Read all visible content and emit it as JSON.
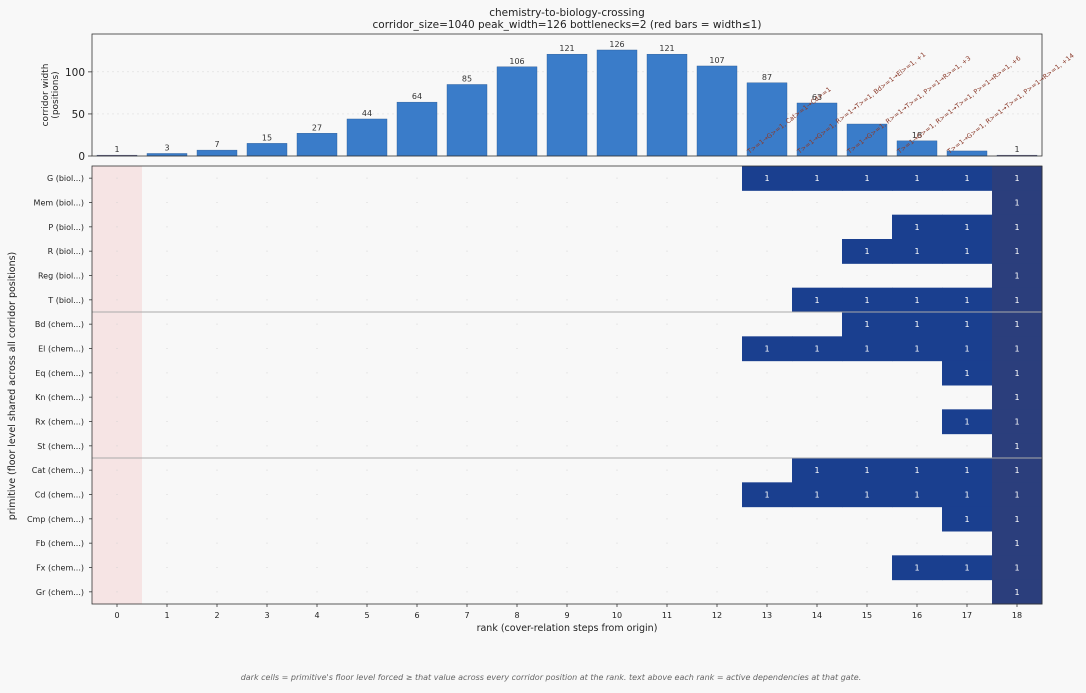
{
  "title": "chemistry-to-biology-crossing",
  "subtitle": "corridor_size=1040  peak_width=126  bottlenecks=2  (red bars = width≤1)",
  "footnote": "dark cells = primitive's floor level forced ≥ that value across every corridor position at the rank.  text above each rank = active dependencies at that gate.",
  "colors": {
    "bar": "#3a7cc9",
    "bar_bottleneck": "#c0392b",
    "bottleneck_band": "#f6e4e4",
    "cell": "#1a3f8f",
    "cell_last": "#2b3e7c",
    "annotation": "#8b3a2a"
  },
  "chart_data": [
    {
      "type": "bar",
      "ylabel": "corridor width\n(positions)",
      "ylim": [
        0,
        145
      ],
      "yticks": [
        0,
        50,
        100
      ],
      "categories": [
        0,
        1,
        2,
        3,
        4,
        5,
        6,
        7,
        8,
        9,
        10,
        11,
        12,
        13,
        14,
        15,
        16,
        17,
        18
      ],
      "values": [
        1,
        3,
        7,
        15,
        27,
        44,
        64,
        85,
        106,
        121,
        126,
        121,
        107,
        87,
        63,
        38,
        18,
        6,
        1
      ],
      "value_labels": [
        "1",
        "3",
        "7",
        "15",
        "27",
        "44",
        "64",
        "85",
        "106",
        "121",
        "126",
        "121",
        "107",
        "87",
        "63",
        "",
        "18",
        "",
        "1"
      ],
      "bottleneck_ranks": [
        0,
        18
      ],
      "annotations": [
        {
          "rank": 13,
          "text": "T>=1→G>=1, Cat>=1→Cd>=1"
        },
        {
          "rank": 14,
          "text": "T>=1→G>=1, R>=1→T>=1, Bd>=1→El>=1, +1"
        },
        {
          "rank": 15,
          "text": "T>=1→G>=1, R>=1→T>=1, P>=1→R>=1, +3"
        },
        {
          "rank": 16,
          "text": "T>=1→G>=1, R>=1→T>=1, P>=1→R>=1, +6"
        },
        {
          "rank": 17,
          "text": "T>=1→G>=1, R>=1→T>=1, P>=1→R>=1, +14"
        }
      ]
    },
    {
      "type": "heatmap",
      "xlabel": "rank (cover-relation steps from origin)",
      "ylabel": "primitive (floor level shared across all corridor positions)",
      "xticks": [
        0,
        1,
        2,
        3,
        4,
        5,
        6,
        7,
        8,
        9,
        10,
        11,
        12,
        13,
        14,
        15,
        16,
        17,
        18
      ],
      "rows": [
        "G  (biol...)",
        "Mem  (biol...)",
        "P  (biol...)",
        "R  (biol...)",
        "Reg  (biol...)",
        "T  (biol...)",
        "Bd  (chem...)",
        "El  (chem...)",
        "Eq  (chem...)",
        "Kn  (chem...)",
        "Rx  (chem...)",
        "St  (chem...)",
        "Cat  (chem...)",
        "Cd  (chem...)",
        "Cmp  (chem...)",
        "Fb  (chem...)",
        "Fx  (chem...)",
        "Gr  (chem...)"
      ],
      "group_separators_after_row": [
        5,
        11
      ],
      "cells": [
        {
          "row": 0,
          "ranks": [
            13,
            14,
            15,
            16,
            17,
            18
          ],
          "value": "1"
        },
        {
          "row": 1,
          "ranks": [
            18
          ],
          "value": "1"
        },
        {
          "row": 2,
          "ranks": [
            16,
            17,
            18
          ],
          "value": "1"
        },
        {
          "row": 3,
          "ranks": [
            15,
            16,
            17,
            18
          ],
          "value": "1"
        },
        {
          "row": 4,
          "ranks": [
            18
          ],
          "value": "1"
        },
        {
          "row": 5,
          "ranks": [
            14,
            15,
            16,
            17,
            18
          ],
          "value": "1"
        },
        {
          "row": 6,
          "ranks": [
            15,
            16,
            17,
            18
          ],
          "value": "1"
        },
        {
          "row": 7,
          "ranks": [
            13,
            14,
            15,
            16,
            17,
            18
          ],
          "value": "1"
        },
        {
          "row": 8,
          "ranks": [
            17,
            18
          ],
          "value": "1"
        },
        {
          "row": 9,
          "ranks": [
            18
          ],
          "value": "1"
        },
        {
          "row": 10,
          "ranks": [
            17,
            18
          ],
          "value": "1"
        },
        {
          "row": 11,
          "ranks": [
            18
          ],
          "value": "1"
        },
        {
          "row": 12,
          "ranks": [
            14,
            15,
            16,
            17,
            18
          ],
          "value": "1"
        },
        {
          "row": 13,
          "ranks": [
            13,
            14,
            15,
            16,
            17,
            18
          ],
          "value": "1"
        },
        {
          "row": 14,
          "ranks": [
            17,
            18
          ],
          "value": "1"
        },
        {
          "row": 15,
          "ranks": [
            18
          ],
          "value": "1"
        },
        {
          "row": 16,
          "ranks": [
            16,
            17,
            18
          ],
          "value": "1"
        },
        {
          "row": 17,
          "ranks": [
            18
          ],
          "value": "1"
        }
      ]
    }
  ]
}
